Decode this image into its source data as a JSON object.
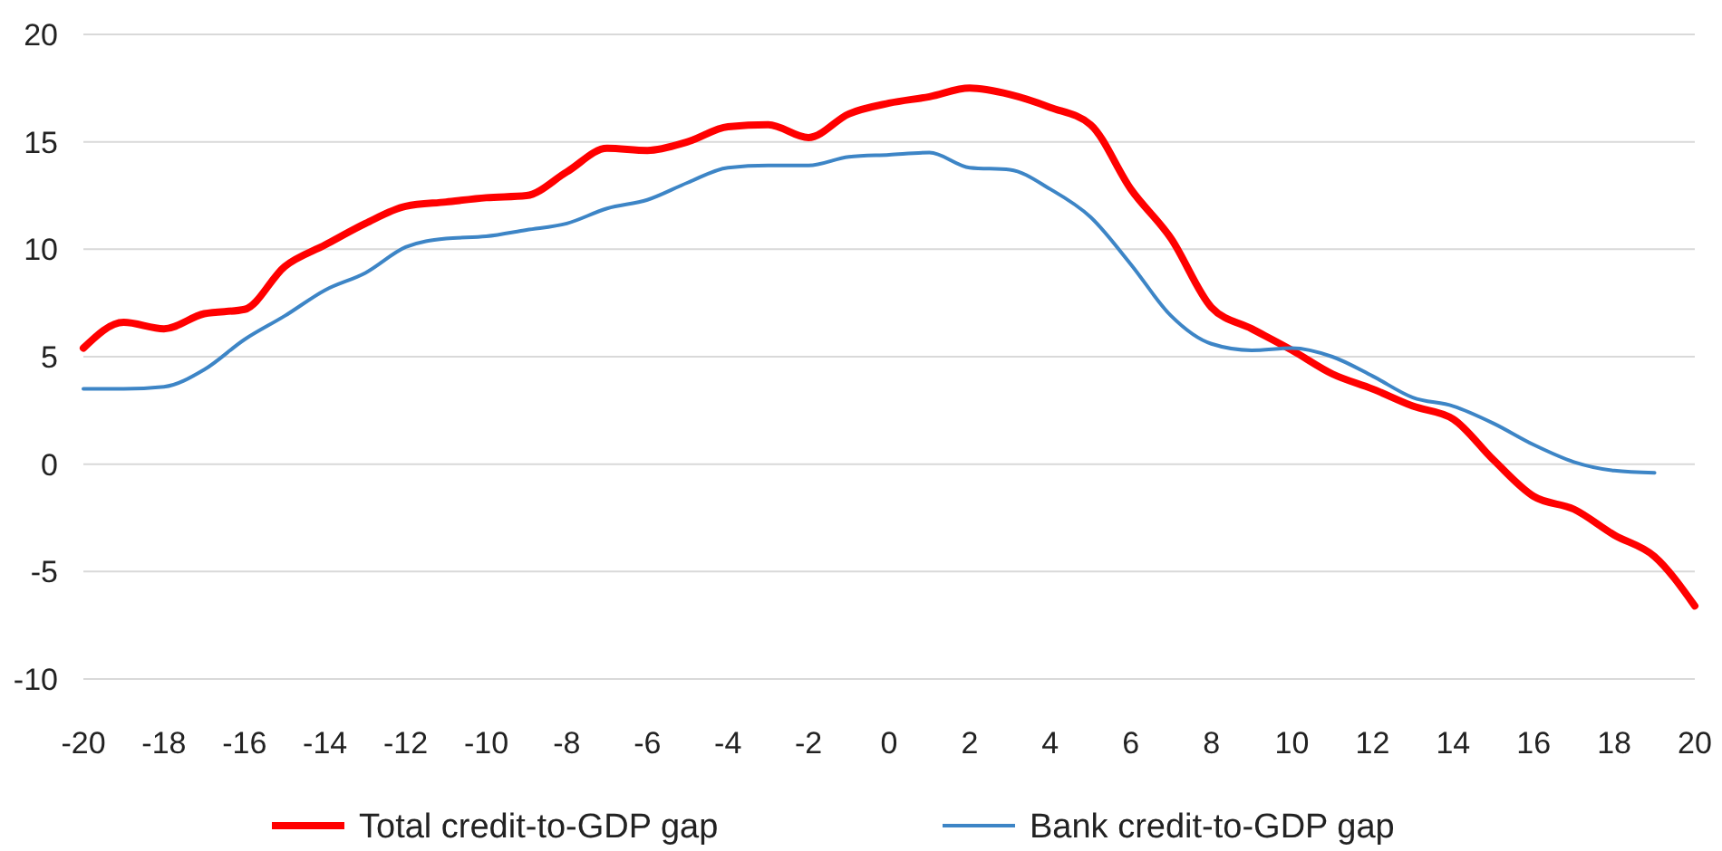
{
  "chart_data": {
    "type": "line",
    "x": [
      -20,
      -19,
      -18,
      -17,
      -16,
      -15,
      -14,
      -13,
      -12,
      -11,
      -10,
      -9,
      -8,
      -7,
      -6,
      -5,
      -4,
      -3,
      -2,
      -1,
      0,
      1,
      2,
      3,
      4,
      5,
      6,
      7,
      8,
      9,
      10,
      11,
      12,
      13,
      14,
      15,
      16,
      17,
      18,
      19,
      20
    ],
    "series": [
      {
        "name": "Total credit-to-GDP gap",
        "color": "#ff0000",
        "values": [
          5.4,
          6.6,
          6.3,
          7.0,
          7.2,
          9.2,
          10.2,
          11.2,
          12.0,
          12.2,
          12.4,
          12.5,
          13.6,
          14.7,
          14.6,
          15.0,
          15.7,
          15.8,
          15.2,
          16.3,
          16.8,
          17.1,
          17.5,
          17.2,
          16.6,
          15.8,
          12.8,
          10.5,
          7.3,
          6.3,
          5.3,
          4.2,
          3.5,
          2.7,
          2.1,
          0.2,
          -1.5,
          -2.1,
          -3.3,
          -4.3,
          -6.6
        ]
      },
      {
        "name": "Bank credit-to-GDP gap",
        "color": "#3d85c6",
        "values": [
          3.5,
          3.5,
          3.6,
          4.4,
          5.8,
          6.9,
          8.1,
          8.9,
          10.1,
          10.5,
          10.6,
          10.9,
          11.2,
          11.9,
          12.3,
          13.1,
          13.8,
          13.9,
          13.9,
          14.3,
          14.4,
          14.5,
          13.8,
          13.7,
          12.8,
          11.5,
          9.3,
          6.9,
          5.6,
          5.3,
          5.4,
          5.0,
          4.1,
          3.1,
          2.7,
          1.9,
          0.9,
          0.1,
          -0.3,
          -0.4,
          null
        ]
      }
    ],
    "xlim": [
      -20,
      20
    ],
    "xticks": [
      -20,
      -18,
      -16,
      -14,
      -12,
      -10,
      -8,
      -6,
      -4,
      -2,
      0,
      2,
      4,
      6,
      8,
      10,
      12,
      14,
      16,
      18,
      20
    ],
    "ylim": [
      -10,
      20
    ],
    "yticks": [
      -10,
      -5,
      0,
      5,
      10,
      15,
      20
    ],
    "grid": "y",
    "legend": "bottom",
    "marker": "none",
    "line_style": "solid"
  }
}
